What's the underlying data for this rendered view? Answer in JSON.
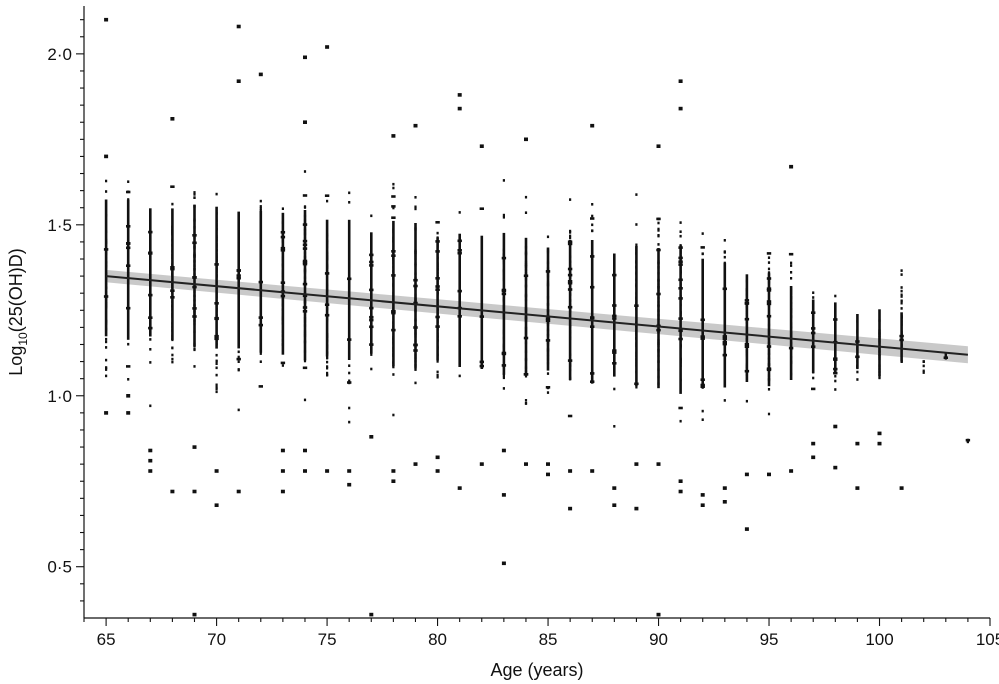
{
  "chart_data": {
    "type": "scatter",
    "title": "",
    "xlabel": "Age (years)",
    "ylabel_parts": {
      "prefix": "Log",
      "subscript": "10",
      "suffix": "(25(OH)D)"
    },
    "xlim": [
      64,
      105
    ],
    "ylim": [
      0.35,
      2.14
    ],
    "xticks": [
      65,
      70,
      75,
      80,
      85,
      90,
      95,
      100,
      105
    ],
    "yticks": [
      0.5,
      1.0,
      1.5,
      2.0
    ],
    "ytick_labels": [
      "0·5",
      "1·0",
      "1·5",
      "2·0"
    ],
    "grid": false,
    "fit": {
      "x": [
        65,
        104
      ],
      "y": [
        1.35,
        1.12
      ],
      "ci_halfwidth": [
        0.018,
        0.025
      ]
    },
    "columns": [
      {
        "x": 65,
        "y": [
          0.93,
          1.73
        ],
        "extra": [
          2.1,
          0.95,
          1.7
        ]
      },
      {
        "x": 66,
        "y": [
          0.93,
          1.75
        ],
        "extra": [
          1.0,
          0.95
        ]
      },
      {
        "x": 67,
        "y": [
          0.93,
          1.68
        ],
        "extra": [
          0.84,
          0.81,
          0.78
        ]
      },
      {
        "x": 68,
        "y": [
          0.93,
          1.7
        ],
        "extra": [
          1.81,
          0.72
        ]
      },
      {
        "x": 69,
        "y": [
          0.9,
          1.73
        ],
        "extra": [
          0.85,
          0.72,
          0.36
        ]
      },
      {
        "x": 70,
        "y": [
          0.9,
          1.73
        ],
        "extra": [
          0.78,
          0.68
        ]
      },
      {
        "x": 71,
        "y": [
          0.88,
          1.68
        ],
        "extra": [
          2.08,
          1.92,
          0.72
        ]
      },
      {
        "x": 72,
        "y": [
          0.9,
          1.73
        ],
        "extra": [
          1.94
        ]
      },
      {
        "x": 73,
        "y": [
          0.88,
          1.71
        ],
        "extra": [
          0.84,
          0.78,
          0.72
        ]
      },
      {
        "x": 74,
        "y": [
          0.88,
          1.76
        ],
        "extra": [
          1.99,
          1.8,
          0.84,
          0.78
        ]
      },
      {
        "x": 75,
        "y": [
          0.9,
          1.7
        ],
        "extra": [
          2.02,
          0.78
        ]
      },
      {
        "x": 76,
        "y": [
          0.88,
          1.7
        ],
        "extra": [
          0.78,
          0.74
        ]
      },
      {
        "x": 77,
        "y": [
          0.93,
          1.64
        ],
        "extra": [
          0.88,
          0.36
        ]
      },
      {
        "x": 78,
        "y": [
          0.88,
          1.73
        ],
        "extra": [
          1.76,
          0.78,
          0.75
        ]
      },
      {
        "x": 79,
        "y": [
          0.88,
          1.73
        ],
        "extra": [
          1.79,
          0.8
        ]
      },
      {
        "x": 80,
        "y": [
          0.9,
          1.62
        ],
        "extra": [
          0.82,
          0.78
        ]
      },
      {
        "x": 81,
        "y": [
          0.9,
          1.68
        ],
        "extra": [
          1.88,
          1.84,
          0.73
        ]
      },
      {
        "x": 82,
        "y": [
          0.9,
          1.68
        ],
        "extra": [
          1.73,
          0.8
        ]
      },
      {
        "x": 83,
        "y": [
          0.88,
          1.71
        ],
        "extra": [
          0.84,
          0.71,
          0.51
        ]
      },
      {
        "x": 84,
        "y": [
          0.88,
          1.68
        ],
        "extra": [
          1.75,
          0.8
        ]
      },
      {
        "x": 85,
        "y": [
          0.88,
          1.6
        ],
        "extra": [
          0.8,
          0.77
        ]
      },
      {
        "x": 86,
        "y": [
          0.88,
          1.7
        ],
        "extra": [
          0.78,
          0.67
        ]
      },
      {
        "x": 87,
        "y": [
          0.88,
          1.72
        ],
        "extra": [
          1.79,
          0.78
        ]
      },
      {
        "x": 88,
        "y": [
          0.88,
          1.6
        ],
        "extra": [
          0.73,
          0.68
        ]
      },
      {
        "x": 89,
        "y": [
          0.88,
          1.7
        ],
        "extra": [
          0.8,
          0.67
        ]
      },
      {
        "x": 90,
        "y": [
          0.88,
          1.7
        ],
        "extra": [
          1.73,
          0.8,
          0.36
        ]
      },
      {
        "x": 91,
        "y": [
          0.85,
          1.72
        ],
        "extra": [
          1.92,
          1.84,
          0.75,
          0.72
        ]
      },
      {
        "x": 92,
        "y": [
          0.85,
          1.6
        ],
        "extra": [
          0.71,
          0.68
        ]
      },
      {
        "x": 93,
        "y": [
          0.88,
          1.61
        ],
        "extra": [
          0.73,
          0.69
        ]
      },
      {
        "x": 94,
        "y": [
          0.9,
          1.53
        ],
        "extra": [
          0.77,
          0.61
        ]
      },
      {
        "x": 95,
        "y": [
          0.9,
          1.56
        ],
        "extra": [
          0.77
        ]
      },
      {
        "x": 96,
        "y": [
          0.95,
          1.5
        ],
        "extra": [
          1.67,
          0.78
        ]
      },
      {
        "x": 97,
        "y": [
          0.95,
          1.38
        ],
        "extra": [
          0.86,
          0.82
        ]
      },
      {
        "x": 98,
        "y": [
          0.95,
          1.37
        ],
        "extra": [
          0.91,
          0.79
        ]
      },
      {
        "x": 99,
        "y": [
          0.95,
          1.27
        ],
        "extra": [
          0.86,
          0.73
        ]
      },
      {
        "x": 100,
        "y": [
          0.95,
          1.34
        ],
        "extra": [
          0.89,
          0.86
        ]
      },
      {
        "x": 101,
        "y": [
          1.1,
          1.48
        ],
        "extra": [
          0.73
        ]
      },
      {
        "x": 102,
        "y": [
          1.05,
          1.1
        ],
        "extra": []
      },
      {
        "x": 103,
        "y": [
          1.1,
          1.12
        ],
        "extra": []
      },
      {
        "x": 104,
        "y": [
          0.86,
          0.87
        ],
        "extra": []
      }
    ]
  }
}
